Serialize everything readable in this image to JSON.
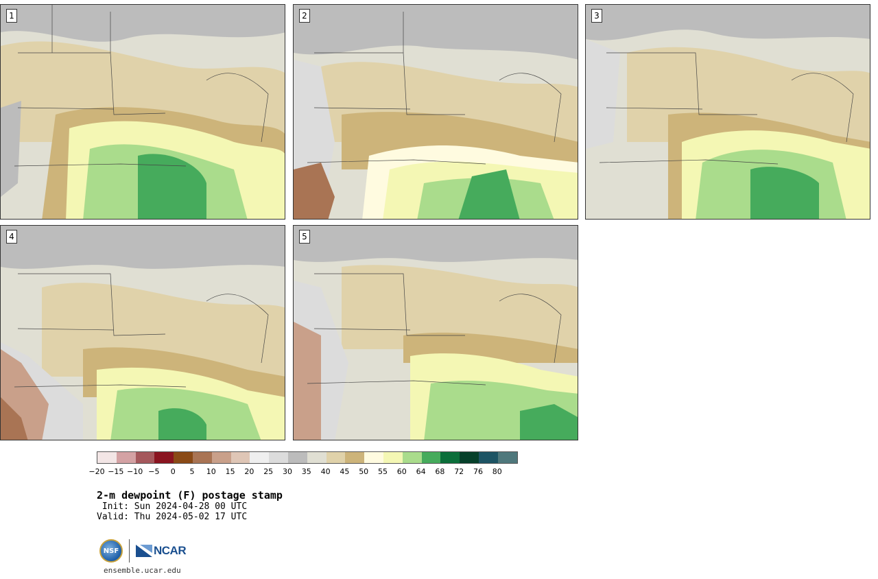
{
  "panels": [
    {
      "label": "1"
    },
    {
      "label": "2"
    },
    {
      "label": "3"
    },
    {
      "label": "4"
    },
    {
      "label": "5"
    }
  ],
  "colorbar": {
    "colors": [
      "#f3e6e6",
      "#d4a2a4",
      "#a5585c",
      "#8a1420",
      "#8a4a16",
      "#a97454",
      "#c9a08a",
      "#dfc6b6",
      "#efefef",
      "#dcdcdc",
      "#bcbcbc",
      "#e0dfd3",
      "#e0d2aa",
      "#cdb47a",
      "#fffbe0",
      "#f4f7b4",
      "#aadc8c",
      "#46ab5c",
      "#0b6e3a",
      "#06402a",
      "#1d5464",
      "#4f787c"
    ],
    "ticks": [
      "−20",
      "−15",
      "−10",
      "−5",
      "0",
      "5",
      "10",
      "15",
      "20",
      "25",
      "30",
      "35",
      "40",
      "45",
      "50",
      "55",
      "60",
      "64",
      "68",
      "72",
      "76",
      "80"
    ]
  },
  "title": "2-m dewpoint (F) postage stamp",
  "init": " Init: Sun 2024-04-28 00 UTC",
  "valid": "Valid: Thu 2024-05-02 17 UTC",
  "logos": {
    "nsf": "NSF",
    "ncar": "NCAR"
  },
  "url": "ensemble.ucar.edu"
}
